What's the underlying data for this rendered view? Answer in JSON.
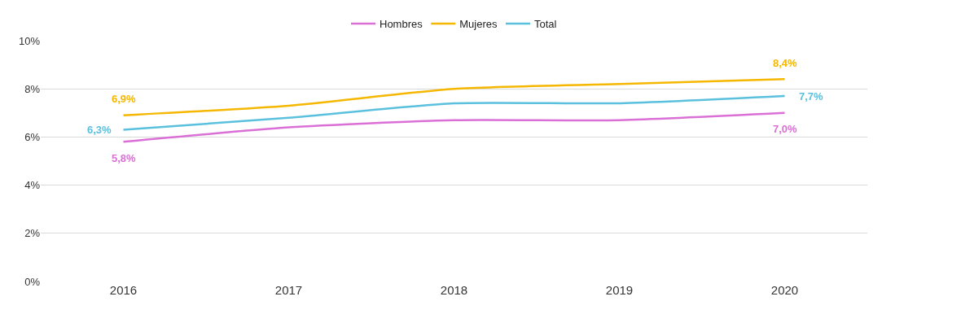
{
  "chart_data": {
    "type": "line",
    "categories": [
      "2016",
      "2017",
      "2018",
      "2019",
      "2020"
    ],
    "series": [
      {
        "name": "Hombres",
        "color": "#da70d6",
        "values": [
          5.8,
          6.4,
          6.7,
          6.7,
          7.0
        ],
        "value_labels": [
          "5,8%",
          null,
          null,
          null,
          "7,0%"
        ]
      },
      {
        "name": "Mujeres",
        "color": "#f5b700",
        "values": [
          6.9,
          7.3,
          8.0,
          8.2,
          8.4
        ],
        "value_labels": [
          "6,9%",
          null,
          null,
          null,
          "8,4%"
        ]
      },
      {
        "name": "Total",
        "color": "#5bc0de",
        "values": [
          6.3,
          6.8,
          7.4,
          7.4,
          7.7
        ],
        "value_labels": [
          "6,3%",
          null,
          null,
          null,
          "7,7%"
        ]
      }
    ],
    "ylim": [
      0,
      10
    ],
    "yticks": [
      {
        "value": 0,
        "label": "0%"
      },
      {
        "value": 2,
        "label": "2%"
      },
      {
        "value": 4,
        "label": "4%"
      },
      {
        "value": 6,
        "label": "6%"
      },
      {
        "value": 8,
        "label": "8%"
      },
      {
        "value": 10,
        "label": "10%"
      }
    ],
    "grid": "y",
    "legend": "top",
    "marker": "none",
    "line_style": "solid"
  }
}
